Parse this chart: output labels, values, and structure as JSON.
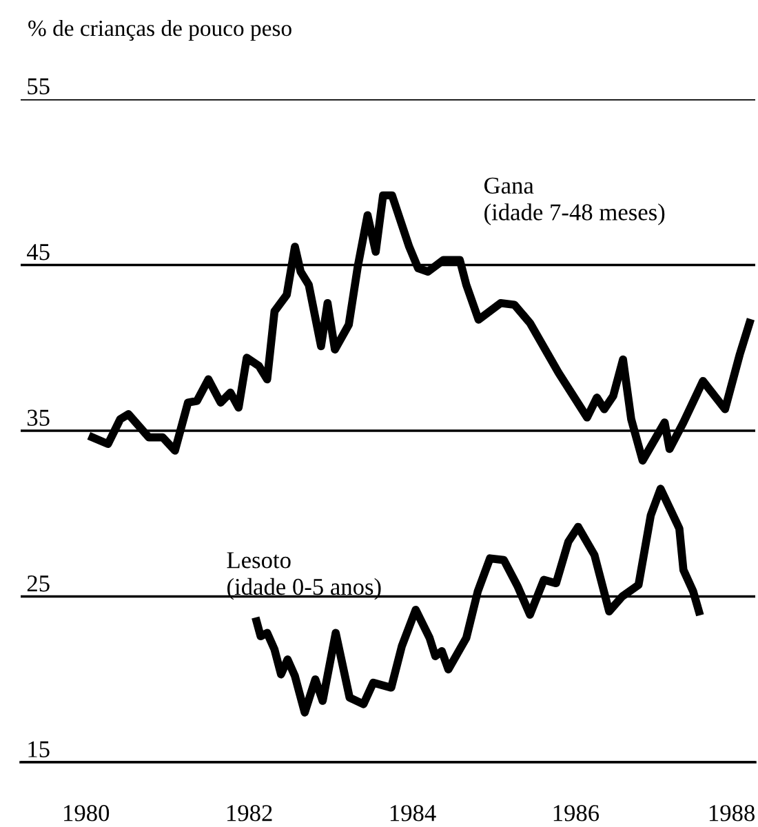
{
  "chart_data": {
    "type": "line",
    "ylabel": "% de crianças de pouco peso",
    "xlim": [
      1979.2,
      1988.2
    ],
    "xticks": [
      1980,
      1982,
      1984,
      1986,
      1988
    ],
    "ylim": [
      15,
      55
    ],
    "yticks": [
      15,
      25,
      35,
      45,
      55
    ],
    "grid": "y",
    "legend": false,
    "marker": "none",
    "line_style": "solid",
    "series": [
      {
        "name": "Gana\n(idade 7-48 meses)",
        "color": "#000000",
        "x": [
          1980.08,
          1980.27,
          1980.42,
          1980.52,
          1980.77,
          1980.94,
          1981.09,
          1981.25,
          1981.36,
          1981.5,
          1981.65,
          1981.77,
          1981.87,
          1981.97,
          1982.12,
          1982.22,
          1982.31,
          1982.46,
          1982.56,
          1982.63,
          1982.73,
          1982.88,
          1982.96,
          1983.05,
          1983.22,
          1983.33,
          1983.45,
          1983.55,
          1983.64,
          1983.75,
          1983.96,
          1984.07,
          1984.19,
          1984.38,
          1984.58,
          1984.66,
          1984.81,
          1985.08,
          1985.25,
          1985.44,
          1985.79,
          1986.14,
          1986.26,
          1986.35,
          1986.46,
          1986.58,
          1986.68,
          1986.82,
          1987.09,
          1987.15,
          1987.32,
          1987.56,
          1987.83,
          1988.01,
          1988.13
        ],
        "values": [
          34.6,
          34.2,
          35.7,
          36.0,
          34.6,
          34.6,
          33.8,
          36.7,
          36.8,
          38.1,
          36.7,
          37.3,
          36.4,
          39.4,
          38.9,
          38.1,
          42.2,
          43.2,
          46.1,
          44.6,
          43.8,
          40.1,
          42.7,
          39.9,
          41.4,
          44.9,
          48.0,
          45.8,
          49.2,
          49.2,
          46.1,
          44.8,
          44.6,
          45.3,
          45.3,
          43.8,
          41.7,
          42.7,
          42.6,
          41.5,
          38.5,
          35.8,
          37.0,
          36.3,
          37.1,
          39.3,
          35.7,
          33.2,
          35.5,
          33.9,
          35.5,
          38.0,
          36.3,
          39.6,
          41.5
        ]
      },
      {
        "name": "Lesoto\n(idade 0-5 anos)",
        "color": "#000000",
        "x": [
          1982.09,
          1982.14,
          1982.22,
          1982.31,
          1982.39,
          1982.47,
          1982.56,
          1982.68,
          1982.81,
          1982.9,
          1983.06,
          1983.23,
          1983.4,
          1983.52,
          1983.74,
          1983.87,
          1984.04,
          1984.21,
          1984.28,
          1984.36,
          1984.44,
          1984.66,
          1984.8,
          1984.95,
          1985.12,
          1985.29,
          1985.44,
          1985.61,
          1985.76,
          1985.91,
          1986.03,
          1986.23,
          1986.41,
          1986.57,
          1986.77,
          1986.92,
          1987.04,
          1987.27,
          1987.32,
          1987.44,
          1987.51
        ],
        "values": [
          23.5,
          22.6,
          22.8,
          21.8,
          20.3,
          21.2,
          20.2,
          18.0,
          20.0,
          18.7,
          22.8,
          18.9,
          18.5,
          19.8,
          19.5,
          22.0,
          24.2,
          22.5,
          21.4,
          21.7,
          20.6,
          22.5,
          25.3,
          27.3,
          27.2,
          25.6,
          23.9,
          26.0,
          25.8,
          28.3,
          29.2,
          27.5,
          24.1,
          25.0,
          25.7,
          29.9,
          31.5,
          29.1,
          26.6,
          25.3,
          24.1
        ]
      }
    ]
  }
}
